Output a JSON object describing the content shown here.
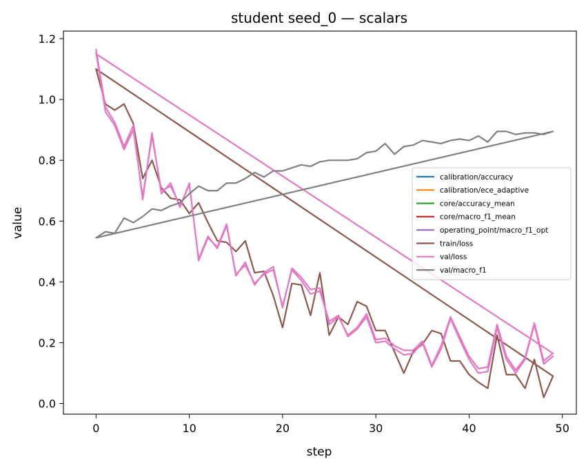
{
  "chart_data": {
    "type": "line",
    "title": "student seed_0 — scalars",
    "xlabel": "step",
    "ylabel": "value",
    "xlim": [
      -3.5,
      51.5
    ],
    "ylim": [
      -0.035,
      1.225
    ],
    "xticks": [
      0,
      10,
      20,
      30,
      40,
      50
    ],
    "yticks": [
      0.0,
      0.2,
      0.4,
      0.6,
      0.8,
      1.0,
      1.2
    ],
    "ytick_labels": [
      "0.0",
      "0.2",
      "0.4",
      "0.6",
      "0.8",
      "1.0",
      "1.2"
    ],
    "grid": false,
    "legend_position": "center-right",
    "series": [
      {
        "name": "calibration/accuracy",
        "color": "#1f77b4",
        "x": [],
        "y": []
      },
      {
        "name": "calibration/ece_adaptive",
        "color": "#ff7f0e",
        "x": [],
        "y": []
      },
      {
        "name": "core/accuracy_mean",
        "color": "#2ca02c",
        "x": [],
        "y": []
      },
      {
        "name": "core/macro_f1_mean",
        "color": "#d62728",
        "x": [],
        "y": []
      },
      {
        "name": "operating_point/macro_f1_opt",
        "color": "#9467bd",
        "x": [],
        "y": []
      },
      {
        "name": "train/loss",
        "color": "#8c564b",
        "x": [
          0,
          1,
          2,
          3,
          4,
          5,
          6,
          7,
          8,
          9,
          10,
          11,
          12,
          13,
          14,
          15,
          16,
          17,
          18,
          19,
          20,
          21,
          22,
          23,
          24,
          25,
          26,
          27,
          28,
          29,
          30,
          31,
          32,
          33,
          34,
          35,
          36,
          37,
          38,
          39,
          40,
          41,
          42,
          43,
          44,
          45,
          46,
          47,
          48,
          49,
          49,
          0
        ],
        "y": [
          1.1,
          0.985,
          0.965,
          0.985,
          0.92,
          0.74,
          0.8,
          0.71,
          0.675,
          0.67,
          0.625,
          0.66,
          0.595,
          0.535,
          0.53,
          0.5,
          0.535,
          0.43,
          0.435,
          0.355,
          0.25,
          0.395,
          0.39,
          0.29,
          0.43,
          0.225,
          0.285,
          0.26,
          0.335,
          0.32,
          0.24,
          0.24,
          0.17,
          0.1,
          0.17,
          0.195,
          0.24,
          0.23,
          0.14,
          0.14,
          0.095,
          0.07,
          0.05,
          0.225,
          0.095,
          0.095,
          0.05,
          0.145,
          0.02,
          0.09,
          0.09,
          1.1
        ]
      },
      {
        "name": "val/loss",
        "color": "#e377c2",
        "x": [
          0,
          1,
          2,
          3,
          4,
          5,
          6,
          7,
          8,
          9,
          10,
          11,
          12,
          13,
          14,
          15,
          16,
          17,
          18,
          19,
          20,
          21,
          22,
          23,
          24,
          25,
          26,
          27,
          28,
          29,
          30,
          31,
          32,
          33,
          34,
          35,
          36,
          37,
          38,
          39,
          40,
          41,
          42,
          43,
          44,
          45,
          46,
          47,
          48,
          49,
          49,
          0,
          0,
          1,
          2,
          3,
          4,
          5,
          6,
          7,
          8,
          9,
          10,
          11,
          12,
          13,
          14,
          15,
          16,
          17,
          18,
          19,
          20,
          21,
          22,
          23,
          24,
          25,
          26,
          27,
          28,
          29,
          30,
          31,
          32,
          33,
          34,
          35,
          36,
          37,
          38,
          39,
          40,
          41,
          42,
          43,
          44,
          45,
          46,
          47,
          48,
          49
        ],
        "y": [
          1.165,
          0.975,
          0.925,
          0.845,
          0.915,
          0.67,
          0.89,
          0.69,
          0.725,
          0.645,
          0.725,
          0.47,
          0.545,
          0.515,
          0.59,
          0.42,
          0.465,
          0.39,
          0.43,
          0.45,
          0.315,
          0.445,
          0.415,
          0.375,
          0.38,
          0.26,
          0.285,
          0.225,
          0.25,
          0.295,
          0.21,
          0.215,
          0.19,
          0.175,
          0.175,
          0.205,
          0.125,
          0.19,
          0.285,
          0.22,
          0.155,
          0.115,
          0.12,
          0.26,
          0.155,
          0.11,
          0.15,
          0.265,
          0.14,
          0.165,
          0.165,
          1.15,
          1.155,
          0.96,
          0.915,
          0.835,
          0.9,
          0.68,
          0.88,
          0.7,
          0.715,
          0.65,
          0.72,
          0.475,
          0.55,
          0.51,
          0.585,
          0.425,
          0.455,
          0.395,
          0.425,
          0.44,
          0.32,
          0.44,
          0.405,
          0.36,
          0.37,
          0.27,
          0.29,
          0.22,
          0.245,
          0.285,
          0.2,
          0.205,
          0.18,
          0.16,
          0.165,
          0.2,
          0.12,
          0.18,
          0.28,
          0.21,
          0.145,
          0.1,
          0.105,
          0.25,
          0.145,
          0.1,
          0.145,
          0.26,
          0.13,
          0.155
        ]
      },
      {
        "name": "val/macro_f1",
        "color": "#7f7f7f",
        "x": [
          0,
          1,
          2,
          3,
          4,
          5,
          6,
          7,
          8,
          9,
          10,
          11,
          12,
          13,
          14,
          15,
          16,
          17,
          18,
          19,
          20,
          21,
          22,
          23,
          24,
          25,
          26,
          27,
          28,
          29,
          30,
          31,
          32,
          33,
          34,
          35,
          36,
          37,
          38,
          39,
          40,
          41,
          42,
          43,
          44,
          45,
          46,
          47,
          48,
          49,
          49,
          0
        ],
        "y": [
          0.545,
          0.565,
          0.56,
          0.61,
          0.595,
          0.615,
          0.64,
          0.635,
          0.65,
          0.66,
          0.69,
          0.715,
          0.7,
          0.7,
          0.725,
          0.725,
          0.74,
          0.76,
          0.745,
          0.765,
          0.765,
          0.775,
          0.785,
          0.78,
          0.795,
          0.8,
          0.8,
          0.8,
          0.805,
          0.825,
          0.83,
          0.855,
          0.82,
          0.845,
          0.85,
          0.865,
          0.86,
          0.855,
          0.865,
          0.87,
          0.865,
          0.88,
          0.86,
          0.895,
          0.895,
          0.885,
          0.89,
          0.89,
          0.885,
          0.895,
          0.895,
          0.545
        ]
      }
    ]
  }
}
